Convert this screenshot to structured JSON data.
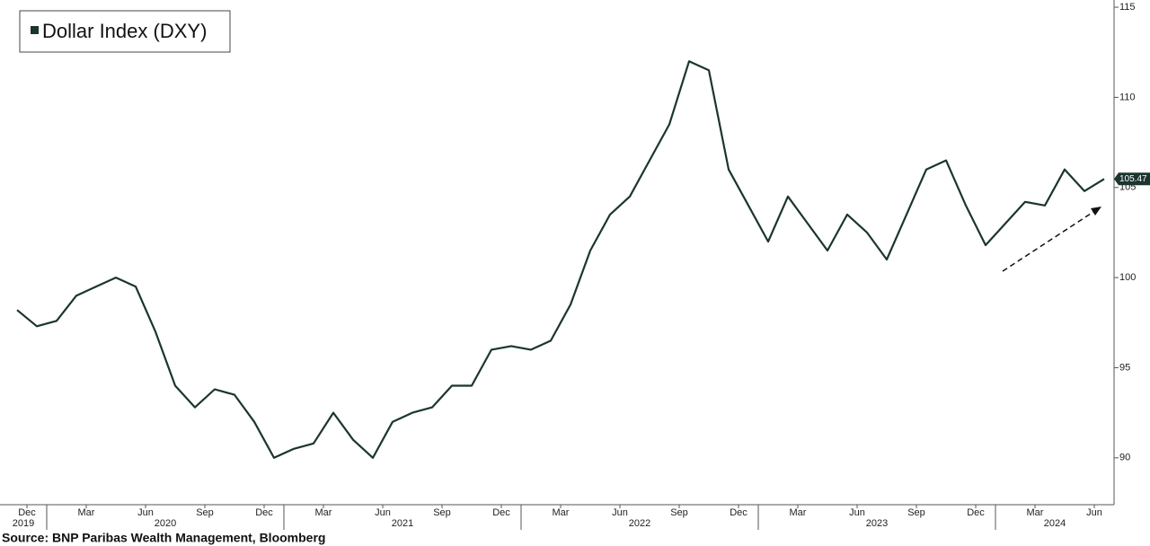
{
  "chart_data": {
    "type": "line",
    "source": "Source: BNP Paribas Wealth Management, Bloomberg",
    "x": [
      "2019-11",
      "2019-12",
      "2020-01",
      "2020-02",
      "2020-03",
      "2020-04",
      "2020-05",
      "2020-06",
      "2020-07",
      "2020-08",
      "2020-09",
      "2020-10",
      "2020-11",
      "2020-12",
      "2021-01",
      "2021-02",
      "2021-03",
      "2021-04",
      "2021-05",
      "2021-06",
      "2021-07",
      "2021-08",
      "2021-09",
      "2021-10",
      "2021-11",
      "2021-12",
      "2022-01",
      "2022-02",
      "2022-03",
      "2022-04",
      "2022-05",
      "2022-06",
      "2022-07",
      "2022-08",
      "2022-09",
      "2022-10",
      "2022-11",
      "2022-12",
      "2023-01",
      "2023-02",
      "2023-03",
      "2023-04",
      "2023-05",
      "2023-06",
      "2023-07",
      "2023-08",
      "2023-09",
      "2023-10",
      "2023-11",
      "2023-12",
      "2024-01",
      "2024-02",
      "2024-03",
      "2024-04",
      "2024-05",
      "2024-06"
    ],
    "series": [
      {
        "name": "Dollar Index (DXY)",
        "color": "#1c3530",
        "values": [
          98.2,
          97.3,
          97.6,
          99.0,
          99.5,
          100.0,
          99.5,
          97.0,
          94.0,
          92.8,
          93.8,
          93.5,
          92.0,
          90.0,
          90.5,
          90.8,
          92.5,
          91.0,
          90.0,
          92.0,
          92.5,
          92.8,
          94.0,
          94.0,
          96.0,
          96.2,
          96.0,
          96.5,
          98.5,
          101.5,
          103.5,
          104.5,
          106.5,
          108.5,
          112.0,
          111.5,
          106.0,
          104.0,
          102.0,
          104.5,
          103.0,
          101.5,
          103.5,
          102.5,
          101.0,
          103.5,
          106.0,
          106.5,
          104.0,
          101.8,
          103.0,
          104.2,
          104.0,
          106.0,
          104.8,
          105.47
        ]
      }
    ],
    "xlim": [
      "2019-11",
      "2024-07"
    ],
    "xticks": [
      {
        "value": "2019-12",
        "label": "Dec"
      },
      {
        "value": "2020-03",
        "label": "Mar"
      },
      {
        "value": "2020-06",
        "label": "Jun"
      },
      {
        "value": "2020-09",
        "label": "Sep"
      },
      {
        "value": "2020-12",
        "label": "Dec"
      },
      {
        "value": "2021-03",
        "label": "Mar"
      },
      {
        "value": "2021-06",
        "label": "Jun"
      },
      {
        "value": "2021-09",
        "label": "Sep"
      },
      {
        "value": "2021-12",
        "label": "Dec"
      },
      {
        "value": "2022-03",
        "label": "Mar"
      },
      {
        "value": "2022-06",
        "label": "Jun"
      },
      {
        "value": "2022-09",
        "label": "Sep"
      },
      {
        "value": "2022-12",
        "label": "Dec"
      },
      {
        "value": "2023-03",
        "label": "Mar"
      },
      {
        "value": "2023-06",
        "label": "Jun"
      },
      {
        "value": "2023-09",
        "label": "Sep"
      },
      {
        "value": "2023-12",
        "label": "Dec"
      },
      {
        "value": "2024-03",
        "label": "Mar"
      },
      {
        "value": "2024-06",
        "label": "Jun"
      }
    ],
    "year_ticks": [
      2019,
      2020,
      2021,
      2022,
      2023,
      2024
    ],
    "ylim": [
      87.4,
      115.4
    ],
    "yticks": [
      90,
      95,
      100,
      105,
      110,
      115
    ]
  }
}
